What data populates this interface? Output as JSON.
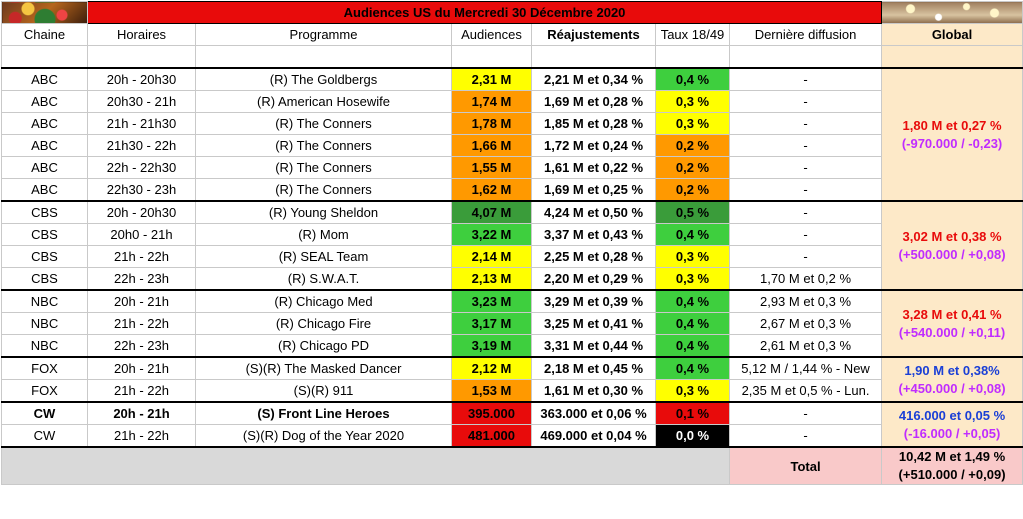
{
  "title": "Audiences US du Mercredi 30 Décembre 2020",
  "headers": {
    "chaine": "Chaine",
    "horaires": "Horaires",
    "programme": "Programme",
    "audiences": "Audiences",
    "reajustements": "Réajustements",
    "taux": "Taux 18/49",
    "derniere": "Dernière diffusion",
    "global": "Global"
  },
  "rows": [
    {
      "chaine": "ABC",
      "horaires": "20h - 20h30",
      "programme": "(R) The Goldbergs",
      "audiences": "2,31 M",
      "reajustement": "2,21 M et 0,34 %",
      "taux": "0,4 %",
      "derniere": "-"
    },
    {
      "chaine": "ABC",
      "horaires": "20h30 - 21h",
      "programme": "(R) American Hosewife",
      "audiences": "1,74 M",
      "reajustement": "1,69 M et 0,28 %",
      "taux": "0,3 %",
      "derniere": "-"
    },
    {
      "chaine": "ABC",
      "horaires": "21h - 21h30",
      "programme": "(R) The Conners",
      "audiences": "1,78 M",
      "reajustement": "1,85 M et 0,28 %",
      "taux": "0,3 %",
      "derniere": "-"
    },
    {
      "chaine": "ABC",
      "horaires": "21h30 - 22h",
      "programme": "(R) The Conners",
      "audiences": "1,66 M",
      "reajustement": "1,72 M et 0,24 %",
      "taux": "0,2 %",
      "derniere": "-"
    },
    {
      "chaine": "ABC",
      "horaires": "22h - 22h30",
      "programme": "(R) The Conners",
      "audiences": "1,55 M",
      "reajustement": "1,61 M et 0,22 %",
      "taux": "0,2 %",
      "derniere": "-"
    },
    {
      "chaine": "ABC",
      "horaires": "22h30 - 23h",
      "programme": "(R) The Conners",
      "audiences": "1,62 M",
      "reajustement": "1,69 M et 0,25 %",
      "taux": "0,2 %",
      "derniere": "-"
    },
    {
      "chaine": "CBS",
      "horaires": "20h - 20h30",
      "programme": "(R) Young Sheldon",
      "audiences": "4,07 M",
      "reajustement": "4,24 M et 0,50 %",
      "taux": "0,5 %",
      "derniere": "-"
    },
    {
      "chaine": "CBS",
      "horaires": "20h0 - 21h",
      "programme": "(R) Mom",
      "audiences": "3,22 M",
      "reajustement": "3,37 M et 0,43 %",
      "taux": "0,4 %",
      "derniere": "-"
    },
    {
      "chaine": "CBS",
      "horaires": "21h - 22h",
      "programme": "(R) SEAL Team",
      "audiences": "2,14 M",
      "reajustement": "2,25 M et 0,28 %",
      "taux": "0,3 %",
      "derniere": "-"
    },
    {
      "chaine": "CBS",
      "horaires": "22h - 23h",
      "programme": "(R) S.W.A.T.",
      "audiences": "2,13 M",
      "reajustement": "2,20 M et 0,29 %",
      "taux": "0,3 %",
      "derniere": "1,70 M et 0,2 %"
    },
    {
      "chaine": "NBC",
      "horaires": "20h - 21h",
      "programme": "(R) Chicago Med",
      "audiences": "3,23 M",
      "reajustement": "3,29 M et 0,39 %",
      "taux": "0,4 %",
      "derniere": "2,93 M et 0,3 %"
    },
    {
      "chaine": "NBC",
      "horaires": "21h - 22h",
      "programme": "(R) Chicago Fire",
      "audiences": "3,17 M",
      "reajustement": "3,25 M et 0,41 %",
      "taux": "0,4 %",
      "derniere": "2,67 M et 0,3 %"
    },
    {
      "chaine": "NBC",
      "horaires": "22h - 23h",
      "programme": "(R) Chicago PD",
      "audiences": "3,19 M",
      "reajustement": "3,31 M et 0,44 %",
      "taux": "0,4 %",
      "derniere": "2,61 M et 0,3 %"
    },
    {
      "chaine": "FOX",
      "horaires": "20h - 21h",
      "programme": "(S)(R) The Masked Dancer",
      "audiences": "2,12 M",
      "reajustement": "2,18 M et 0,45 %",
      "taux": "0,4 %",
      "derniere": "5,12 M  / 1,44 % - New"
    },
    {
      "chaine": "FOX",
      "horaires": "21h - 22h",
      "programme": "(S)(R) 911",
      "audiences": "1,53 M",
      "reajustement": "1,61 M et 0,30 %",
      "taux": "0,3 %",
      "derniere": "2,35 M et 0,5 % - Lun."
    },
    {
      "chaine": "CW",
      "horaires": "20h - 21h",
      "programme": "(S) Front Line Heroes",
      "audiences": "395.000",
      "reajustement": "363.000 et 0,06 %",
      "taux": "0,1 %",
      "derniere": "-"
    },
    {
      "chaine": "CW",
      "horaires": "21h - 22h",
      "programme": "(S)(R) Dog of the Year 2020",
      "audiences": "481.000",
      "reajustement": "469.000 et 0,04 %",
      "taux": "0,0 %",
      "derniere": "-"
    }
  ],
  "globals": {
    "abc": {
      "line1": "1,80 M et 0,27 %",
      "line2": "(-970.000 / -0,23)"
    },
    "cbs": {
      "line1": "3,02 M et 0,38 %",
      "line2": "(+500.000 / +0,08)"
    },
    "nbc": {
      "line1": "3,28 M et 0,41 %",
      "line2": "(+540.000 / +0,11)"
    },
    "fox": {
      "line1": "1,90 M et 0,38%",
      "line2": "(+450.000 / +0,08)"
    },
    "cw": {
      "line1": "416.000 et 0,05 %",
      "line2": "(-16.000 / +0,05)"
    }
  },
  "total": {
    "label": "Total",
    "line1": "10,42 M et 1,49 %",
    "line2": "(+510.000 / +0,09)"
  },
  "colors": {
    "banner_bg": "#e80b0b",
    "banner_text": "#ffee00",
    "reajust": "#9b30ff",
    "global_bg": "#fde9c8",
    "yellow": "#ffff00",
    "orange": "#ff9900",
    "green": "#3ecf3e",
    "dark_green": "#3a9c3a",
    "red": "#e80b0b",
    "black": "#000000"
  }
}
